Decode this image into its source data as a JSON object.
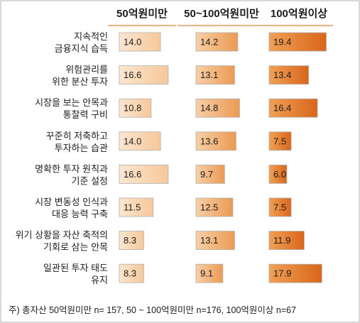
{
  "chart_data": {
    "type": "bar",
    "orientation": "horizontal",
    "groups": [
      "50억원미만",
      "50~100억원미만",
      "100억원이상"
    ],
    "categories": [
      [
        "지속적인",
        "금융지식 습득"
      ],
      [
        "위험관리를",
        "위한 분산 투자"
      ],
      [
        "시장을 보는 안목과",
        "통찰력 구비"
      ],
      [
        "꾸준히 저축하고",
        "투자하는 습관"
      ],
      [
        "명확한 투자 원칙과",
        "기준 설정"
      ],
      [
        "시장 변동성 인식과",
        "대응 능력 구축"
      ],
      [
        "위기 상황을 자산 축적의",
        "기회로 삼는 안목"
      ],
      [
        "일관된 투자 태도",
        "유지"
      ]
    ],
    "series": [
      {
        "name": "50억원미만",
        "values": [
          "14.0",
          "16.6",
          "10.8",
          "14.0",
          "16.6",
          "11.5",
          "8.3",
          "8.3"
        ]
      },
      {
        "name": "50~100억원미만",
        "values": [
          "14.2",
          "13.1",
          "14.8",
          "13.6",
          "9.7",
          "12.5",
          "13.1",
          "9.1"
        ]
      },
      {
        "name": "100억원이상",
        "values": [
          "19.4",
          "13.4",
          "16.4",
          "7.5",
          "6.0",
          "7.5",
          "11.9",
          "17.9"
        ]
      }
    ],
    "note": "주) 총자산 50억원미만 n= 157, 50 ~ 100억원미만 n=176, 100억원이상 n=67",
    "colors": {
      "light_start": "#fbe6d0",
      "light_end": "#f6c89a",
      "mid_start": "#f7cfa6",
      "mid_end": "#ec9a52",
      "dark_start": "#f0a055",
      "dark_end": "#d9661b",
      "header_underline": "#e39a5a",
      "border": "#b0b0b0"
    }
  }
}
